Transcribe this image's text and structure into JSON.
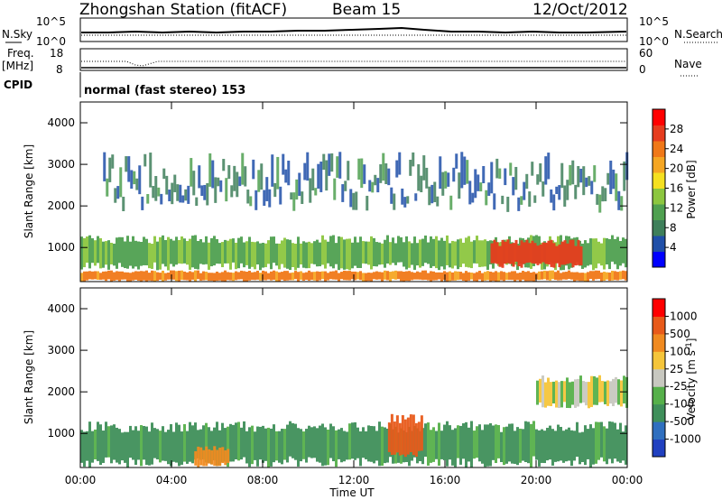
{
  "header": {
    "station": "Zhongshan Station (fitACF)",
    "beam": "Beam 15",
    "date": "12/Oct/2012"
  },
  "noise_panel": {
    "left_label": "N.Sky",
    "right_label": "N.Search",
    "left_ticks": [
      "10^5",
      "10^0"
    ],
    "right_ticks": [
      "10^5",
      "10^0"
    ]
  },
  "freq_panel": {
    "left_label_1": "Freq.",
    "left_label_2": "[MHz]",
    "right_label": "Nave",
    "left_ticks": [
      "18",
      "8"
    ],
    "right_ticks": [
      "60",
      "0"
    ]
  },
  "cpid_panel": {
    "label": "CPID",
    "text": "normal (fast stereo) 153"
  },
  "chart_data": [
    {
      "type": "heatmap",
      "name": "power",
      "ylabel": "Slant Range [km]",
      "ylim": [
        180,
        4500
      ],
      "yticks": [
        "1000",
        "2000",
        "3000",
        "4000"
      ],
      "ytick_values": [
        1000,
        2000,
        3000,
        4000
      ],
      "colorbar": {
        "label": "Power [dB]",
        "tick_labels": [
          "4",
          "8",
          "12",
          "16",
          "20",
          "24",
          "28"
        ],
        "colors": [
          "#0000ff",
          "#1f4fa8",
          "#3e7f5a",
          "#4fa050",
          "#8cc63f",
          "#f5e020",
          "#f5a623",
          "#f07818",
          "#e63c1e",
          "#ff0000"
        ]
      },
      "x_range_hours": [
        0,
        24
      ],
      "echo_regions": [
        {
          "start_hour": 0.0,
          "end_hour": 24.0,
          "min_km": 180,
          "max_km": 450,
          "value_db": 24
        },
        {
          "start_hour": 0.0,
          "end_hour": 24.0,
          "min_km": 450,
          "max_km": 1300,
          "value_db": 12
        },
        {
          "start_hour": 18.0,
          "end_hour": 22.0,
          "min_km": 500,
          "max_km": 1200,
          "value_db": 28
        },
        {
          "start_hour": 1.0,
          "end_hour": 24.0,
          "min_km": 1300,
          "max_km": 3300,
          "value_db": 6
        }
      ]
    },
    {
      "type": "heatmap",
      "name": "velocity",
      "ylabel": "Slant Range [km]",
      "ylim": [
        180,
        4500
      ],
      "yticks": [
        "1000",
        "2000",
        "3000",
        "4000"
      ],
      "ytick_values": [
        1000,
        2000,
        3000,
        4000
      ],
      "colorbar": {
        "label": "Velocity [m s^-1]",
        "tick_labels": [
          "1000",
          "500",
          "100",
          "25",
          "-25",
          "-100",
          "-500",
          "-1000"
        ],
        "colors": [
          "#2040c0",
          "#2f6fbf",
          "#3f8f5a",
          "#56b04a",
          "#c8c8c0",
          "#f5c53a",
          "#f08a20",
          "#e85a1a",
          "#ff0000"
        ]
      },
      "x_range_hours": [
        0,
        24
      ],
      "echo_regions": [
        {
          "start_hour": 0.0,
          "end_hour": 24.0,
          "min_km": 180,
          "max_km": 1300,
          "value_ms": 100
        },
        {
          "start_hour": 5.0,
          "end_hour": 6.5,
          "min_km": 180,
          "max_km": 700,
          "value_ms": -100
        },
        {
          "start_hour": 13.5,
          "end_hour": 15.0,
          "min_km": 400,
          "max_km": 1500,
          "value_ms": -500
        },
        {
          "start_hour": 20.0,
          "end_hour": 24.0,
          "min_km": 1600,
          "max_km": 2400,
          "value_ms": 0
        }
      ]
    }
  ],
  "x_axis": {
    "ticks": [
      "00:00",
      "04:00",
      "08:00",
      "12:00",
      "16:00",
      "20:00",
      "00:00"
    ],
    "tick_hours": [
      0,
      4,
      8,
      12,
      16,
      20,
      24
    ],
    "label": "Time UT"
  }
}
